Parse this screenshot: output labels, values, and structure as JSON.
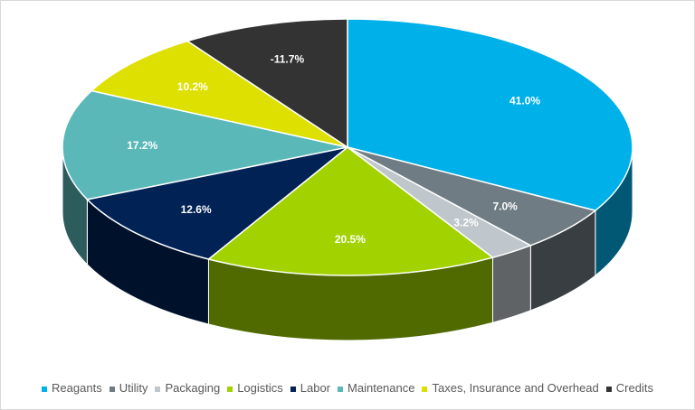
{
  "chart_data": {
    "type": "pie",
    "style": "3d",
    "start": "top, clockwise",
    "legend_position": "bottom",
    "slices": [
      {
        "name": "Reagants",
        "value": 41.0,
        "label": "41.0%",
        "color": "#00b0e8",
        "label_color": "#ffffff"
      },
      {
        "name": "Utility",
        "value": 7.0,
        "label": "7.0%",
        "color": "#6f7c83",
        "label_color": "#ffffff"
      },
      {
        "name": "Packaging",
        "value": 3.2,
        "label": "3.2%",
        "color": "#bfc6cc",
        "label_color": "#ffffff"
      },
      {
        "name": "Logistics",
        "value": 20.5,
        "label": "20.5%",
        "color": "#a2d300",
        "label_color": "#ffffff"
      },
      {
        "name": "Labor",
        "value": 12.6,
        "label": "12.6%",
        "color": "#002255",
        "label_color": "#ffffff"
      },
      {
        "name": "Maintenance",
        "value": 17.2,
        "label": "17.2%",
        "color": "#5ab8b9",
        "label_color": "#ffffff"
      },
      {
        "name": "Taxes, Insurance and Overhead",
        "value": 10.2,
        "label": "10.2%",
        "color": "#dde000",
        "label_color": "#ffffff"
      },
      {
        "name": "Credits",
        "value": -11.7,
        "label": "-11.7%",
        "color": "#333333",
        "label_color": "#ffffff"
      }
    ]
  }
}
